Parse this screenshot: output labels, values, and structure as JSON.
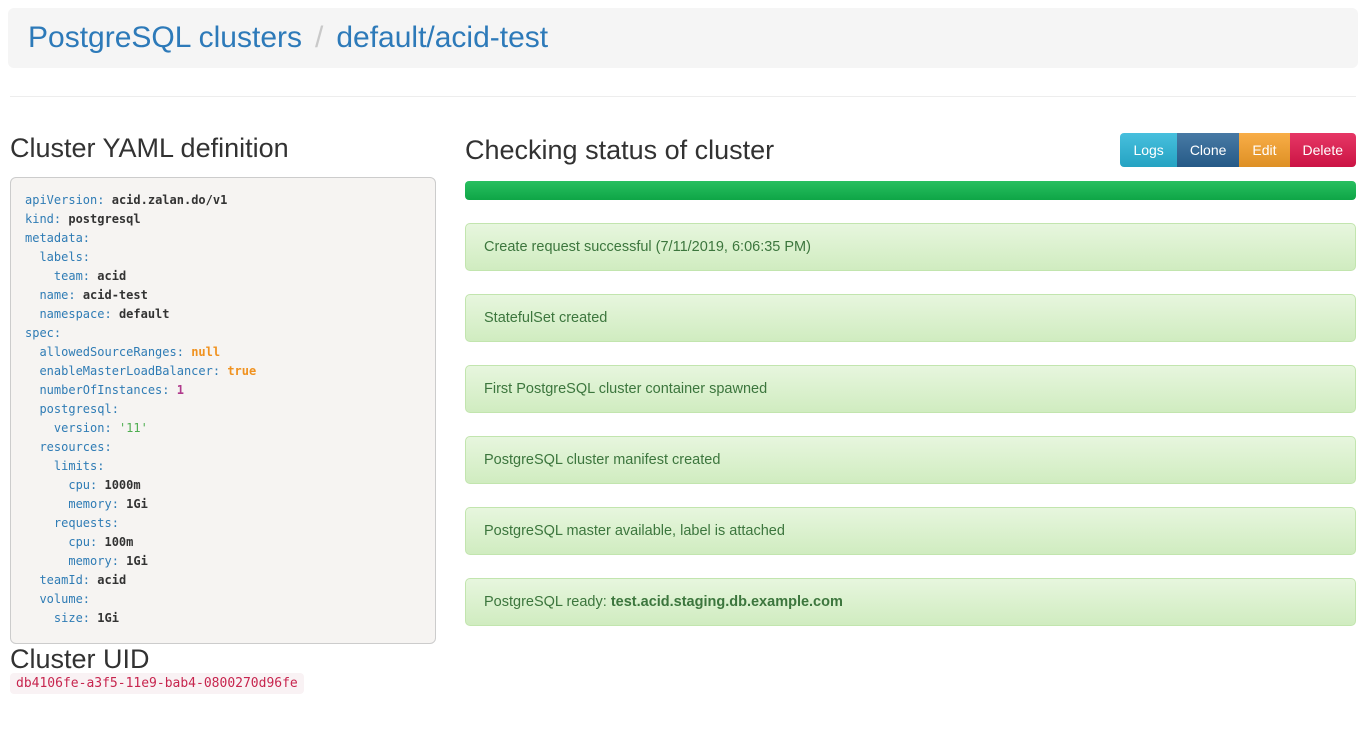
{
  "header": {
    "breadcrumb_root": "PostgreSQL clusters",
    "separator": "/",
    "breadcrumb_current": "default/acid-test"
  },
  "left": {
    "yaml_title": "Cluster YAML definition",
    "yaml_lines": [
      {
        "indent": 0,
        "key": "apiVersion",
        "value": "acid.zalan.do/v1",
        "type": "plain"
      },
      {
        "indent": 0,
        "key": "kind",
        "value": "postgresql",
        "type": "plain"
      },
      {
        "indent": 0,
        "key": "metadata",
        "value": "",
        "type": "none"
      },
      {
        "indent": 1,
        "key": "labels",
        "value": "",
        "type": "none"
      },
      {
        "indent": 2,
        "key": "team",
        "value": "acid",
        "type": "plain"
      },
      {
        "indent": 1,
        "key": "name",
        "value": "acid-test",
        "type": "plain"
      },
      {
        "indent": 1,
        "key": "namespace",
        "value": "default",
        "type": "plain"
      },
      {
        "indent": 0,
        "key": "spec",
        "value": "",
        "type": "none"
      },
      {
        "indent": 1,
        "key": "allowedSourceRanges",
        "value": "null",
        "type": "literal"
      },
      {
        "indent": 1,
        "key": "enableMasterLoadBalancer",
        "value": "true",
        "type": "literal"
      },
      {
        "indent": 1,
        "key": "numberOfInstances",
        "value": "1",
        "type": "number"
      },
      {
        "indent": 1,
        "key": "postgresql",
        "value": "",
        "type": "none"
      },
      {
        "indent": 2,
        "key": "version",
        "value": "'11'",
        "type": "string"
      },
      {
        "indent": 1,
        "key": "resources",
        "value": "",
        "type": "none"
      },
      {
        "indent": 2,
        "key": "limits",
        "value": "",
        "type": "none"
      },
      {
        "indent": 3,
        "key": "cpu",
        "value": "1000m",
        "type": "plain"
      },
      {
        "indent": 3,
        "key": "memory",
        "value": "1Gi",
        "type": "plain"
      },
      {
        "indent": 2,
        "key": "requests",
        "value": "",
        "type": "none"
      },
      {
        "indent": 3,
        "key": "cpu",
        "value": "100m",
        "type": "plain"
      },
      {
        "indent": 3,
        "key": "memory",
        "value": "1Gi",
        "type": "plain"
      },
      {
        "indent": 1,
        "key": "teamId",
        "value": "acid",
        "type": "plain"
      },
      {
        "indent": 1,
        "key": "volume",
        "value": "",
        "type": "none"
      },
      {
        "indent": 2,
        "key": "size",
        "value": "1Gi",
        "type": "plain"
      }
    ],
    "uid_title": "Cluster UID",
    "uid": "db4106fe-a3f5-11e9-bab4-0800270d96fe"
  },
  "status": {
    "title": "Checking status of cluster",
    "buttons": [
      {
        "label": "Logs",
        "color": "#29b5d8",
        "name": "logs-button"
      },
      {
        "label": "Clone",
        "color": "#2a6496",
        "name": "clone-button"
      },
      {
        "label": "Edit",
        "color": "#f7a029",
        "name": "edit-button"
      },
      {
        "label": "Delete",
        "color": "#e2164c",
        "name": "delete-button"
      }
    ],
    "progress_percent": 100,
    "messages": [
      {
        "text": "Create request successful (7/11/2019, 6:06:35 PM)"
      },
      {
        "text": "StatefulSet created"
      },
      {
        "text": "First PostgreSQL cluster container spawned"
      },
      {
        "text": "PostgreSQL cluster manifest created"
      },
      {
        "text": "PostgreSQL master available, label is attached"
      },
      {
        "text": "PostgreSQL ready: ",
        "bold": "test.acid.staging.db.example.com"
      }
    ]
  },
  "colors": {
    "link": "#2d7ab9",
    "breadcrumb_separator": "#c9c9c9",
    "heading": "#323232",
    "progress_green": "#10b84e",
    "success_text": "#3c763d",
    "success_bg_top": "#e7f6de",
    "success_bg_bottom": "#d0ecc0",
    "success_border": "#c2e5ae",
    "yaml_key": "#2f7cb5",
    "yaml_literal": "#f09220",
    "yaml_number": "#b03a8c",
    "yaml_string": "#4fae51",
    "uid_text": "#c7254e",
    "uid_bg": "#f9f2f4"
  }
}
